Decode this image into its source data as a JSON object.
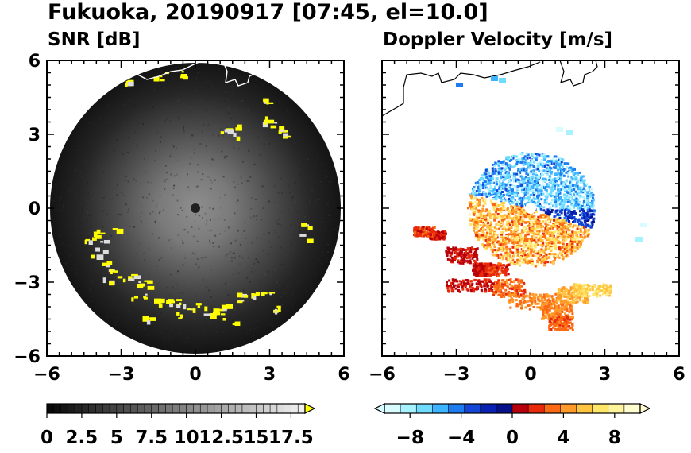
{
  "title": "Fukuoka, 20190917 [07:45, el=10.0]",
  "chart_data": [
    {
      "type": "heatmap",
      "title": "SNR [dB]",
      "xlim": [
        -6,
        6
      ],
      "ylim": [
        -6,
        6
      ],
      "xticks": [
        "−6",
        "−3",
        "0",
        "3",
        "6"
      ],
      "yticks": [
        "6",
        "3",
        "0",
        "−3",
        "−6"
      ],
      "field_radius": 5.9,
      "coastline": true,
      "strong_echo_color": "#ffff00",
      "colorbar": {
        "min": 0,
        "max": 18.5,
        "step": 0.5,
        "extend": "max",
        "tick_values": [
          0,
          2.5,
          5,
          7.5,
          10,
          12.5,
          15,
          17.5
        ],
        "tick_labels": [
          "0",
          "2.5",
          "5",
          "7.5",
          "10",
          "12.5",
          "15",
          "17.5"
        ],
        "extend_color": "#ffff00"
      }
    },
    {
      "type": "heatmap",
      "title": "Doppler Velocity [m/s]",
      "xlim": [
        -6,
        6
      ],
      "ylim": [
        -6,
        6
      ],
      "xticks": [
        "−6",
        "−3",
        "0",
        "3",
        "6"
      ],
      "yticks": [
        "6",
        "3",
        "0",
        "−3",
        "−6"
      ],
      "coastline": true,
      "colorbar": {
        "min": -10,
        "max": 10,
        "extend": "both",
        "tick_values": [
          -8,
          -4,
          0,
          4,
          8
        ],
        "tick_labels": [
          "−8",
          "−4",
          "0",
          "4",
          "8"
        ],
        "colors_negative": [
          "#d8fcff",
          "#a8f2ff",
          "#6fdcff",
          "#3cb4ff",
          "#1e7cf0",
          "#1346d6",
          "#0a22b4",
          "#06128a"
        ],
        "colors_positive": [
          "#b8000a",
          "#e82a0a",
          "#fa6a14",
          "#ff9a28",
          "#ffc440",
          "#ffe668",
          "#fff49c",
          "#fffcd0"
        ]
      }
    }
  ]
}
